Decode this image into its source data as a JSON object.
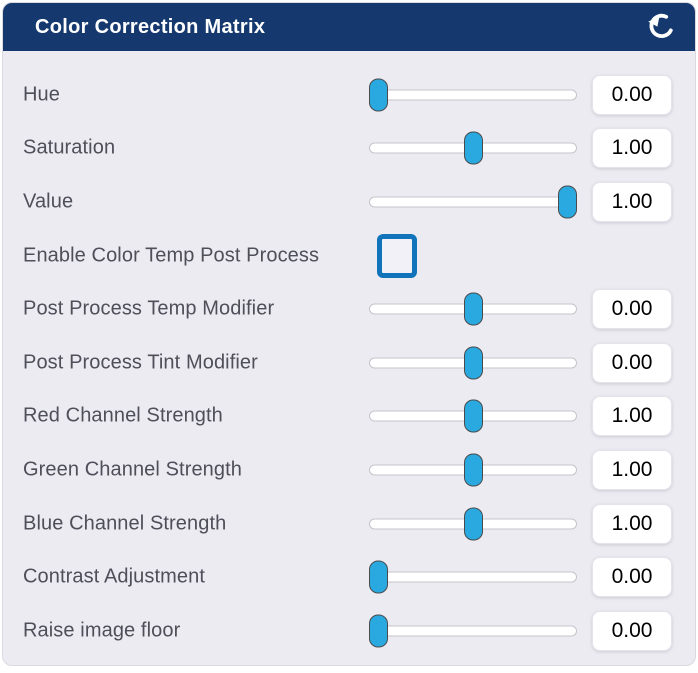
{
  "header": {
    "title": "Color Correction Matrix",
    "reset_icon": "counterclockwise-circular-arrow"
  },
  "colors": {
    "header_bg": "#15396E",
    "panel_bg": "#ECEBF2",
    "slider_thumb": "#29A9E0",
    "checkbox_border": "#1173B9",
    "label_text": "#4F4F59",
    "value_text": "#000000",
    "track_border": "#C4C4CA",
    "thumb_border": "#4B4B4B"
  },
  "rows": [
    {
      "label": "Hue",
      "type": "slider",
      "value": "0.00",
      "position_pct": 0
    },
    {
      "label": "Saturation",
      "type": "slider",
      "value": "1.00",
      "position_pct": 50
    },
    {
      "label": "Value",
      "type": "slider",
      "value": "1.00",
      "position_pct": 100
    },
    {
      "label": "Enable Color Temp Post Process",
      "type": "checkbox",
      "checked": false
    },
    {
      "label": "Post Process Temp Modifier",
      "type": "slider",
      "value": "0.00",
      "position_pct": 50
    },
    {
      "label": "Post Process Tint Modifier",
      "type": "slider",
      "value": "0.00",
      "position_pct": 50
    },
    {
      "label": "Red Channel Strength",
      "type": "slider",
      "value": "1.00",
      "position_pct": 50
    },
    {
      "label": "Green Channel Strength",
      "type": "slider",
      "value": "1.00",
      "position_pct": 50
    },
    {
      "label": "Blue Channel Strength",
      "type": "slider",
      "value": "1.00",
      "position_pct": 50
    },
    {
      "label": "Contrast Adjustment",
      "type": "slider",
      "value": "0.00",
      "position_pct": 0
    },
    {
      "label": "Raise image floor",
      "type": "slider",
      "value": "0.00",
      "position_pct": 0
    }
  ]
}
